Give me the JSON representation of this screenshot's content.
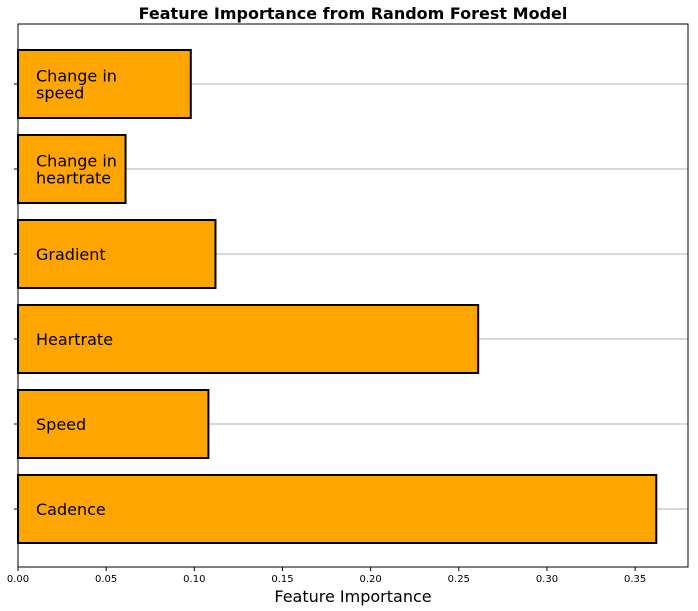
{
  "chart_data": {
    "type": "bar",
    "orientation": "horizontal",
    "title": "Feature Importance from Random Forest Model",
    "xlabel": "Feature Importance",
    "ylabel": "",
    "categories": [
      "Cadence",
      "Speed",
      "Heartrate",
      "Gradient",
      "Change in heartrate",
      "Change in speed"
    ],
    "bar_labels": [
      [
        "Cadence"
      ],
      [
        "Speed"
      ],
      [
        "Heartrate"
      ],
      [
        "Gradient"
      ],
      [
        "Change in",
        "heartrate"
      ],
      [
        "Change in",
        "speed"
      ]
    ],
    "values": [
      0.362,
      0.108,
      0.261,
      0.112,
      0.061,
      0.098
    ],
    "xlim": [
      0,
      0.38
    ],
    "x_ticks": [
      0.0,
      0.05,
      0.1,
      0.15,
      0.2,
      0.25,
      0.3,
      0.35
    ],
    "x_tick_labels": [
      "0.00",
      "0.05",
      "0.10",
      "0.15",
      "0.20",
      "0.25",
      "0.30",
      "0.35"
    ],
    "grid": "y",
    "colors": {
      "bar_fill": "#FFA500",
      "bar_edge": "#000000",
      "grid": "#b0b0b0"
    }
  }
}
